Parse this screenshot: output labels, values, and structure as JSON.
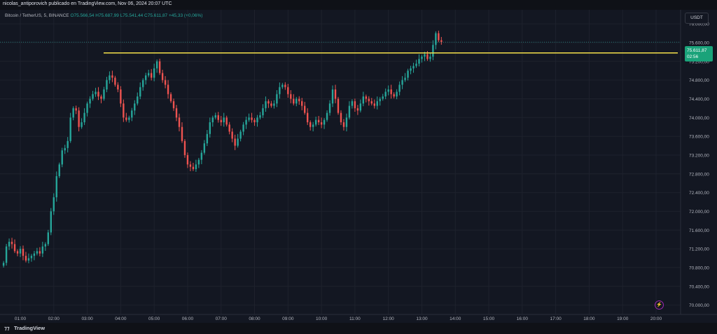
{
  "header": {
    "publisher": "nicolas_antiporovich publicado en TradingView.com, Nov 06, 2024 20:07 UTC"
  },
  "legend": {
    "symbol": "Bitcoin / TetherUS, 5, BINANCE",
    "open": "O75.566,54",
    "high": "H75.687,99",
    "low": "L75.541,44",
    "close": "C75.611,87",
    "change": "+45,33 (+0,06%)"
  },
  "currency_label": "USDT",
  "last_price": {
    "value": "75.611,87",
    "countdown": "02:56",
    "color": "#1aa37a"
  },
  "brand": "TradingView",
  "colors": {
    "up": "#26a69a",
    "down": "#ef5350",
    "hline": "#f5e14a",
    "background": "#131722"
  },
  "chart_data": {
    "type": "candlestick",
    "y_ticks": [
      "76.000,00",
      "75.600,00",
      "75.200,00",
      "74.800,00",
      "74.400,00",
      "74.000,00",
      "73.600,00",
      "73.200,00",
      "72.800,00",
      "72.400,00",
      "72.000,00",
      "71.600,00",
      "71.200,00",
      "70.800,00",
      "70.400,00",
      "70.000,00"
    ],
    "x_ticks": [
      "01:00",
      "02:00",
      "03:00",
      "04:00",
      "05:00",
      "06:00",
      "07:00",
      "08:00",
      "09:00",
      "10:00",
      "11:00",
      "12:00",
      "13:00",
      "14:00",
      "15:00",
      "16:00",
      "17:00",
      "18:00",
      "19:00",
      "20:00"
    ],
    "ylim": [
      69800,
      76300
    ],
    "horizontal_line": 75380,
    "x_start": "00:30",
    "interval_minutes": 5,
    "close": [
      70900,
      71250,
      71350,
      71300,
      71150,
      71100,
      71200,
      71050,
      70950,
      71000,
      71050,
      71100,
      71150,
      71100,
      71250,
      71300,
      71550,
      72000,
      72300,
      72750,
      73000,
      73300,
      73350,
      73500,
      74000,
      74200,
      74150,
      73800,
      73900,
      74100,
      74300,
      74400,
      74500,
      74550,
      74450,
      74400,
      74600,
      74800,
      74900,
      74850,
      74700,
      74600,
      74300,
      74000,
      73950,
      74000,
      74150,
      74300,
      74450,
      74650,
      74800,
      74900,
      74950,
      74850,
      75050,
      75200,
      74950,
      74800,
      74700,
      74500,
      74350,
      74200,
      74000,
      73800,
      73500,
      73200,
      73000,
      72950,
      72900,
      73000,
      73100,
      73250,
      73450,
      73650,
      73900,
      74000,
      74050,
      73950,
      73900,
      74000,
      73850,
      73700,
      73550,
      73400,
      73550,
      73700,
      73850,
      73950,
      74000,
      73950,
      73900,
      74000,
      74050,
      74200,
      74350,
      74300,
      74250,
      74300,
      74500,
      74650,
      74700,
      74650,
      74500,
      74400,
      74300,
      74400,
      74350,
      74250,
      74100,
      73900,
      73800,
      73850,
      73950,
      73900,
      73850,
      73950,
      74100,
      74300,
      74600,
      74400,
      74100,
      73900,
      73800,
      74000,
      74250,
      74350,
      74200,
      74150,
      74300,
      74450,
      74400,
      74350,
      74300,
      74250,
      74350,
      74400,
      74450,
      74550,
      74600,
      74500,
      74450,
      74550,
      74700,
      74800,
      74850,
      75000,
      75050,
      75100,
      75150,
      75250,
      75300,
      75350,
      75250,
      75300,
      75550,
      75800,
      75650,
      75612
    ]
  }
}
